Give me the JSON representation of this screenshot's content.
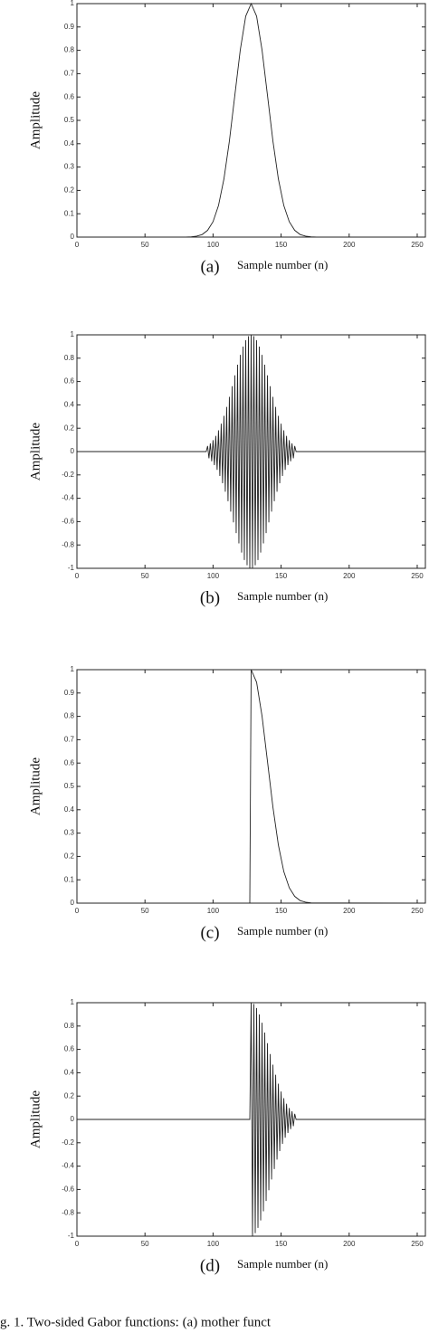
{
  "chart_data": [
    {
      "type": "line",
      "label": "(a)",
      "xlabel": "Sample number (n)",
      "ylabel": "Amplitude",
      "color": "#222222",
      "x": [
        0,
        4,
        8,
        12,
        16,
        20,
        24,
        28,
        32,
        36,
        40,
        44,
        48,
        52,
        56,
        60,
        64,
        68,
        72,
        76,
        80,
        84,
        88,
        92,
        96,
        100,
        104,
        108,
        112,
        116,
        120,
        124,
        128,
        132,
        136,
        140,
        144,
        148,
        152,
        156,
        160,
        164,
        168,
        172,
        176,
        180,
        184,
        188,
        192,
        196,
        200,
        204,
        208,
        212,
        216,
        220,
        224,
        228,
        232,
        236,
        240,
        244,
        248,
        252,
        256
      ],
      "values": [
        0,
        0,
        0,
        0,
        0,
        0,
        0,
        0,
        0,
        0,
        0,
        0,
        0,
        0,
        0,
        0,
        0,
        0,
        0,
        0,
        0,
        0.001,
        0.004,
        0.011,
        0.029,
        0.066,
        0.135,
        0.249,
        0.411,
        0.607,
        0.801,
        0.946,
        1,
        0.946,
        0.801,
        0.607,
        0.411,
        0.249,
        0.135,
        0.066,
        0.029,
        0.011,
        0.004,
        0.001,
        0,
        0,
        0,
        0,
        0,
        0,
        0,
        0,
        0,
        0,
        0,
        0,
        0,
        0,
        0,
        0,
        0,
        0,
        0,
        0,
        0
      ],
      "xlim": [
        0,
        256
      ],
      "xticks": [
        0,
        50,
        100,
        150,
        200,
        250
      ],
      "ylim": [
        0,
        1
      ],
      "yticks": [
        0,
        0.1,
        0.2,
        0.3,
        0.4,
        0.5,
        0.6,
        0.7,
        0.8,
        0.9,
        1
      ]
    },
    {
      "type": "line",
      "label": "(b)",
      "xlabel": "Sample number (n)",
      "ylabel": "Amplitude",
      "color": "#222222",
      "x": [
        0,
        95,
        96,
        97,
        98,
        99,
        100,
        101,
        102,
        103,
        104,
        105,
        106,
        107,
        108,
        109,
        110,
        111,
        112,
        113,
        114,
        115,
        116,
        117,
        118,
        119,
        120,
        121,
        122,
        123,
        124,
        125,
        126,
        127,
        128,
        129,
        130,
        131,
        132,
        133,
        134,
        135,
        136,
        137,
        138,
        139,
        140,
        141,
        142,
        143,
        144,
        145,
        146,
        147,
        148,
        149,
        150,
        151,
        152,
        153,
        154,
        155,
        156,
        157,
        158,
        159,
        160,
        161,
        256
      ],
      "values": [
        0,
        0,
        0.048,
        -0.058,
        0.07,
        -0.083,
        0.098,
        -0.116,
        0.135,
        -0.157,
        0.182,
        -0.209,
        0.239,
        -0.271,
        0.306,
        -0.344,
        0.383,
        -0.425,
        0.469,
        -0.514,
        0.56,
        -0.607,
        0.653,
        -0.699,
        0.744,
        -0.787,
        0.828,
        -0.865,
        0.899,
        -0.929,
        0.954,
        -0.974,
        0.988,
        -0.997,
        1,
        -0.997,
        0.988,
        -0.974,
        0.954,
        -0.929,
        0.899,
        -0.865,
        0.828,
        -0.787,
        0.744,
        -0.699,
        0.653,
        -0.607,
        0.56,
        -0.514,
        0.469,
        -0.425,
        0.383,
        -0.344,
        0.306,
        -0.271,
        0.239,
        -0.209,
        0.182,
        -0.157,
        0.135,
        -0.116,
        0.098,
        -0.083,
        0.07,
        -0.058,
        0.048,
        0,
        0
      ],
      "xlim": [
        0,
        256
      ],
      "xticks": [
        0,
        50,
        100,
        150,
        200,
        250
      ],
      "ylim": [
        -1,
        1
      ],
      "yticks": [
        -1,
        -0.8,
        -0.6,
        -0.4,
        -0.2,
        0,
        0.2,
        0.4,
        0.6,
        0.8,
        1
      ]
    },
    {
      "type": "line",
      "label": "(c)",
      "xlabel": "Sample number (n)",
      "ylabel": "Amplitude",
      "color": "#222222",
      "x": [
        0,
        127,
        128,
        132,
        136,
        140,
        144,
        148,
        152,
        156,
        160,
        164,
        168,
        172,
        256
      ],
      "values": [
        0,
        0,
        1,
        0.946,
        0.801,
        0.607,
        0.411,
        0.249,
        0.135,
        0.066,
        0.029,
        0.011,
        0.004,
        0.001,
        0
      ],
      "xlim": [
        0,
        256
      ],
      "xticks": [
        0,
        50,
        100,
        150,
        200,
        250
      ],
      "ylim": [
        0,
        1
      ],
      "yticks": [
        0,
        0.1,
        0.2,
        0.3,
        0.4,
        0.5,
        0.6,
        0.7,
        0.8,
        0.9,
        1
      ]
    },
    {
      "type": "line",
      "label": "(d)",
      "xlabel": "Sample number (n)",
      "ylabel": "Amplitude",
      "color": "#222222",
      "x": [
        0,
        127,
        128,
        129,
        130,
        131,
        132,
        133,
        134,
        135,
        136,
        137,
        138,
        139,
        140,
        141,
        142,
        143,
        144,
        145,
        146,
        147,
        148,
        149,
        150,
        151,
        152,
        153,
        154,
        155,
        156,
        157,
        158,
        159,
        160,
        161,
        256
      ],
      "values": [
        0,
        0,
        1,
        -0.997,
        0.988,
        -0.974,
        0.954,
        -0.929,
        0.899,
        -0.865,
        0.828,
        -0.787,
        0.744,
        -0.699,
        0.653,
        -0.607,
        0.56,
        -0.514,
        0.469,
        -0.425,
        0.383,
        -0.344,
        0.306,
        -0.271,
        0.239,
        -0.209,
        0.182,
        -0.157,
        0.135,
        -0.116,
        0.098,
        -0.083,
        0.07,
        -0.058,
        0.048,
        0,
        0
      ],
      "xlim": [
        0,
        256
      ],
      "xticks": [
        0,
        50,
        100,
        150,
        200,
        250
      ],
      "ylim": [
        -1,
        1
      ],
      "yticks": [
        -1,
        -0.8,
        -0.6,
        -0.4,
        -0.2,
        0,
        0.2,
        0.4,
        0.6,
        0.8,
        1
      ]
    }
  ],
  "caption": "g. 1. Two-sided Gabor functions: (a) mother funct"
}
